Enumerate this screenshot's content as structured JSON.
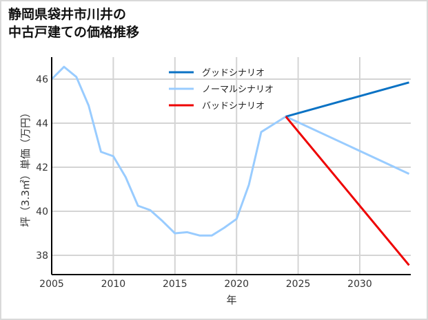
{
  "title_lines": [
    "静岡県袋井市川井の",
    "中古戸建ての価格推移"
  ],
  "chart_data": {
    "type": "line",
    "title": "静岡県袋井市川井の中古戸建ての価格推移",
    "xlabel": "年",
    "ylabel": "坪（3.3㎡）単価（万円）",
    "xlim": [
      2005,
      2034
    ],
    "ylim": [
      37.1,
      47.0
    ],
    "xticks": [
      2005,
      2010,
      2015,
      2020,
      2025,
      2030
    ],
    "yticks": [
      38,
      40,
      42,
      44,
      46
    ],
    "grid": true,
    "legend_position": "upper center",
    "series": [
      {
        "name": "グッドシナリオ",
        "color": "#0a72c4",
        "x": [
          2024,
          2034
        ],
        "values": [
          44.3,
          45.85
        ]
      },
      {
        "name": "ノーマルシナリオ",
        "color": "#99ccff",
        "x": [
          2005,
          2006,
          2007,
          2008,
          2009,
          2010,
          2011,
          2012,
          2013,
          2014,
          2015,
          2016,
          2017,
          2018,
          2019,
          2020,
          2021,
          2022,
          2023,
          2024,
          2034
        ],
        "values": [
          46.0,
          46.56,
          46.1,
          44.8,
          42.7,
          42.5,
          41.55,
          40.25,
          40.05,
          39.55,
          39.0,
          39.05,
          38.9,
          38.9,
          39.25,
          39.65,
          41.2,
          43.6,
          43.95,
          44.3,
          41.7
        ]
      },
      {
        "name": "バッドシナリオ",
        "color": "#ee0000",
        "x": [
          2024,
          2034
        ],
        "values": [
          44.3,
          37.55
        ]
      }
    ]
  }
}
